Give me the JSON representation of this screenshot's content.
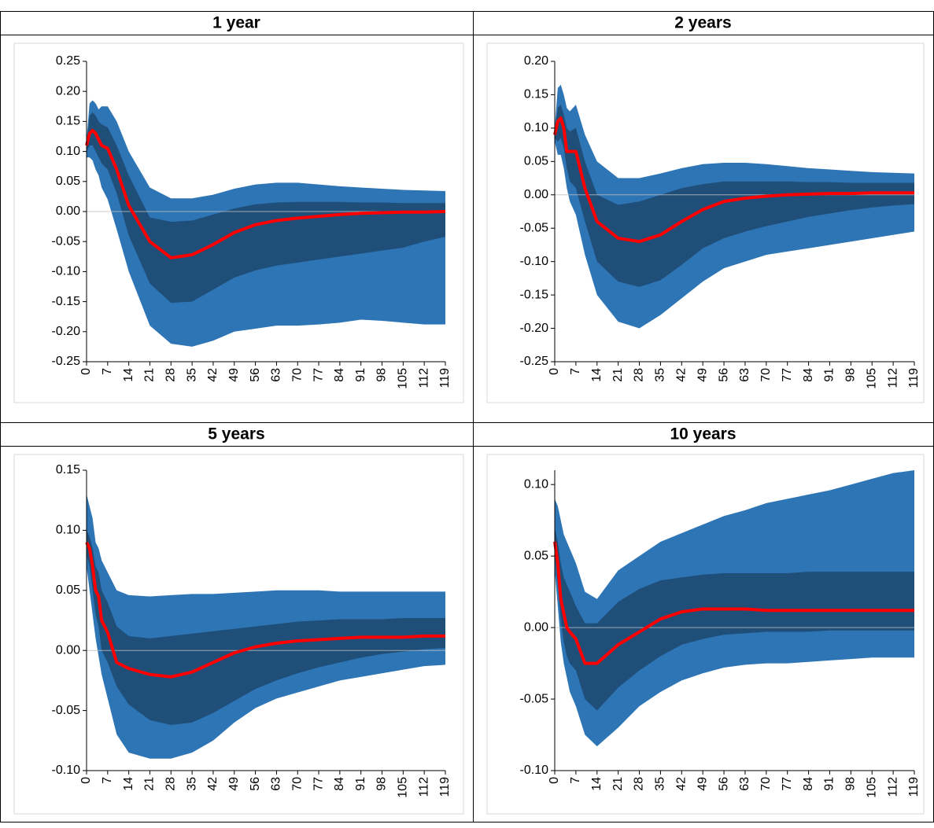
{
  "chart_data": [
    {
      "type": "fan",
      "title": "1 year",
      "x": [
        0,
        1,
        2,
        3,
        4,
        5,
        7,
        10,
        14,
        21,
        28,
        35,
        42,
        49,
        56,
        63,
        70,
        77,
        84,
        91,
        98,
        105,
        112,
        119
      ],
      "xlim": [
        0,
        119
      ],
      "xticks": [
        0,
        7,
        14,
        21,
        28,
        35,
        42,
        49,
        56,
        63,
        70,
        77,
        84,
        91,
        98,
        105,
        112,
        119
      ],
      "ylim": [
        -0.25,
        0.25
      ],
      "yticks": [
        -0.25,
        -0.2,
        -0.15,
        -0.1,
        -0.05,
        0,
        0.05,
        0.1,
        0.15,
        0.2,
        0.25
      ],
      "series": [
        {
          "color": "#2e75b6",
          "high": [
            0.12,
            0.18,
            0.185,
            0.18,
            0.17,
            0.175,
            0.175,
            0.15,
            0.1,
            0.04,
            0.022,
            0.022,
            0.028,
            0.038,
            0.045,
            0.048,
            0.048,
            0.045,
            0.042,
            0.04,
            0.038,
            0.036,
            0.035,
            0.034
          ],
          "low": [
            0.09,
            0.09,
            0.085,
            0.07,
            0.06,
            0.04,
            0.02,
            -0.03,
            -0.1,
            -0.19,
            -0.22,
            -0.225,
            -0.215,
            -0.2,
            -0.195,
            -0.19,
            -0.19,
            -0.188,
            -0.185,
            -0.18,
            -0.182,
            -0.185,
            -0.188,
            -0.188
          ]
        },
        {
          "color": "#1f4e79",
          "high": [
            0.11,
            0.16,
            0.165,
            0.16,
            0.15,
            0.145,
            0.14,
            0.11,
            0.06,
            -0.01,
            -0.017,
            -0.015,
            -0.005,
            0.005,
            0.012,
            0.015,
            0.016,
            0.016,
            0.016,
            0.015,
            0.015,
            0.014,
            0.014,
            0.014
          ],
          "low": [
            0.1,
            0.11,
            0.11,
            0.1,
            0.09,
            0.08,
            0.07,
            0.03,
            -0.04,
            -0.12,
            -0.152,
            -0.15,
            -0.13,
            -0.11,
            -0.098,
            -0.09,
            -0.085,
            -0.08,
            -0.075,
            -0.07,
            -0.065,
            -0.06,
            -0.05,
            -0.042
          ]
        },
        {
          "color": "#ff0000",
          "values": [
            0.11,
            0.13,
            0.135,
            0.13,
            0.12,
            0.11,
            0.105,
            0.07,
            0.01,
            -0.05,
            -0.077,
            -0.072,
            -0.055,
            -0.035,
            -0.022,
            -0.015,
            -0.011,
            -0.008,
            -0.005,
            -0.003,
            -0.002,
            -0.001,
            -0.001,
            0
          ]
        }
      ]
    },
    {
      "type": "fan",
      "title": "2 years",
      "x": [
        0,
        1,
        2,
        3,
        4,
        5,
        7,
        10,
        14,
        21,
        28,
        35,
        42,
        49,
        56,
        63,
        70,
        77,
        84,
        91,
        98,
        105,
        112,
        119
      ],
      "xlim": [
        0,
        119
      ],
      "xticks": [
        0,
        7,
        14,
        21,
        28,
        35,
        42,
        49,
        56,
        63,
        70,
        77,
        84,
        91,
        98,
        105,
        112,
        119
      ],
      "ylim": [
        -0.25,
        0.2
      ],
      "yticks": [
        -0.25,
        -0.2,
        -0.15,
        -0.1,
        -0.05,
        0,
        0.05,
        0.1,
        0.15,
        0.2
      ],
      "series": [
        {
          "color": "#2e75b6",
          "high": [
            0.1,
            0.16,
            0.165,
            0.15,
            0.13,
            0.125,
            0.135,
            0.09,
            0.05,
            0.025,
            0.025,
            0.032,
            0.04,
            0.046,
            0.048,
            0.048,
            0.046,
            0.043,
            0.04,
            0.038,
            0.036,
            0.034,
            0.033,
            0.032
          ],
          "low": [
            0.08,
            0.06,
            0.06,
            0.04,
            0.01,
            -0.01,
            -0.03,
            -0.09,
            -0.15,
            -0.19,
            -0.2,
            -0.18,
            -0.155,
            -0.13,
            -0.11,
            -0.1,
            -0.09,
            -0.085,
            -0.08,
            -0.075,
            -0.07,
            -0.065,
            -0.06,
            -0.055
          ]
        },
        {
          "color": "#1f4e79",
          "high": [
            0.095,
            0.13,
            0.135,
            0.12,
            0.1,
            0.095,
            0.1,
            0.05,
            0,
            -0.015,
            -0.01,
            0,
            0.01,
            0.016,
            0.02,
            0.02,
            0.02,
            0.02,
            0.019,
            0.019,
            0.018,
            0.018,
            0.018,
            0.018
          ],
          "low": [
            0.085,
            0.08,
            0.085,
            0.07,
            0.04,
            0.02,
            0.01,
            -0.04,
            -0.1,
            -0.13,
            -0.138,
            -0.128,
            -0.105,
            -0.08,
            -0.065,
            -0.055,
            -0.047,
            -0.04,
            -0.033,
            -0.028,
            -0.023,
            -0.019,
            -0.016,
            -0.014
          ]
        },
        {
          "color": "#ff0000",
          "values": [
            0.09,
            0.11,
            0.115,
            0.1,
            0.065,
            0.065,
            0.065,
            0.01,
            -0.04,
            -0.065,
            -0.07,
            -0.06,
            -0.04,
            -0.022,
            -0.01,
            -0.005,
            -0.002,
            0,
            0.001,
            0.002,
            0.002,
            0.003,
            0.003,
            0.003
          ]
        }
      ]
    },
    {
      "type": "fan",
      "title": "5 years",
      "x": [
        0,
        1,
        2,
        3,
        4,
        5,
        7,
        10,
        14,
        21,
        28,
        35,
        42,
        49,
        56,
        63,
        70,
        77,
        84,
        91,
        98,
        105,
        112,
        119
      ],
      "xlim": [
        0,
        119
      ],
      "xticks": [
        0,
        7,
        14,
        21,
        28,
        35,
        42,
        49,
        56,
        63,
        70,
        77,
        84,
        91,
        98,
        105,
        112,
        119
      ],
      "ylim": [
        -0.1,
        0.15
      ],
      "yticks": [
        -0.1,
        -0.05,
        0,
        0.05,
        0.1,
        0.15
      ],
      "series": [
        {
          "color": "#2e75b6",
          "high": [
            0.13,
            0.12,
            0.11,
            0.09,
            0.085,
            0.075,
            0.065,
            0.05,
            0.046,
            0.045,
            0.046,
            0.047,
            0.047,
            0.048,
            0.049,
            0.05,
            0.05,
            0.05,
            0.049,
            0.049,
            0.049,
            0.049,
            0.049,
            0.049
          ],
          "low": [
            0.07,
            0.05,
            0.03,
            0.01,
            -0.005,
            -0.02,
            -0.04,
            -0.07,
            -0.085,
            -0.09,
            -0.09,
            -0.085,
            -0.075,
            -0.06,
            -0.048,
            -0.04,
            -0.035,
            -0.03,
            -0.025,
            -0.022,
            -0.019,
            -0.016,
            -0.013,
            -0.012
          ]
        },
        {
          "color": "#1f4e79",
          "high": [
            0.1,
            0.095,
            0.085,
            0.07,
            0.065,
            0.05,
            0.04,
            0.02,
            0.012,
            0.01,
            0.012,
            0.014,
            0.016,
            0.018,
            0.02,
            0.022,
            0.024,
            0.025,
            0.026,
            0.026,
            0.026,
            0.027,
            0.027,
            0.027
          ],
          "low": [
            0.08,
            0.07,
            0.05,
            0.03,
            0.02,
            0,
            -0.01,
            -0.03,
            -0.045,
            -0.058,
            -0.062,
            -0.06,
            -0.052,
            -0.042,
            -0.032,
            -0.025,
            -0.019,
            -0.014,
            -0.01,
            -0.006,
            -0.003,
            -0.001,
            0.001,
            0.002
          ]
        },
        {
          "color": "#ff0000",
          "values": [
            0.09,
            0.085,
            0.07,
            0.05,
            0.045,
            0.025,
            0.015,
            -0.01,
            -0.015,
            -0.02,
            -0.022,
            -0.018,
            -0.01,
            -0.002,
            0.003,
            0.006,
            0.008,
            0.009,
            0.01,
            0.011,
            0.011,
            0.011,
            0.012,
            0.012
          ]
        }
      ]
    },
    {
      "type": "fan",
      "title": "10 years",
      "x": [
        0,
        1,
        2,
        3,
        4,
        5,
        7,
        10,
        14,
        21,
        28,
        35,
        42,
        49,
        56,
        63,
        70,
        77,
        84,
        91,
        98,
        105,
        112,
        119
      ],
      "xlim": [
        0,
        119
      ],
      "xticks": [
        0,
        7,
        14,
        21,
        28,
        35,
        42,
        49,
        56,
        63,
        70,
        77,
        84,
        91,
        98,
        105,
        112,
        119
      ],
      "ylim": [
        -0.1,
        0.11
      ],
      "yticks": [
        -0.1,
        -0.05,
        0,
        0.05,
        0.1
      ],
      "series": [
        {
          "color": "#2e75b6",
          "high": [
            0.09,
            0.085,
            0.075,
            0.065,
            0.06,
            0.055,
            0.045,
            0.025,
            0.02,
            0.04,
            0.05,
            0.06,
            0.066,
            0.072,
            0.078,
            0.082,
            0.087,
            0.09,
            0.093,
            0.096,
            0.1,
            0.104,
            0.108,
            0.11
          ],
          "low": [
            0.04,
            0.015,
            -0.01,
            -0.025,
            -0.035,
            -0.045,
            -0.055,
            -0.075,
            -0.083,
            -0.07,
            -0.055,
            -0.045,
            -0.037,
            -0.032,
            -0.028,
            -0.026,
            -0.025,
            -0.025,
            -0.024,
            -0.023,
            -0.022,
            -0.021,
            -0.021,
            -0.021
          ]
        },
        {
          "color": "#1f4e79",
          "high": [
            0.07,
            0.06,
            0.045,
            0.035,
            0.03,
            0.025,
            0.015,
            0.003,
            0.003,
            0.018,
            0.027,
            0.033,
            0.035,
            0.037,
            0.038,
            0.038,
            0.038,
            0.038,
            0.039,
            0.039,
            0.039,
            0.039,
            0.039,
            0.039
          ],
          "low": [
            0.05,
            0.03,
            0.005,
            -0.01,
            -0.02,
            -0.025,
            -0.03,
            -0.05,
            -0.058,
            -0.042,
            -0.03,
            -0.02,
            -0.012,
            -0.008,
            -0.005,
            -0.004,
            -0.003,
            -0.003,
            -0.003,
            -0.002,
            -0.002,
            -0.002,
            -0.002,
            -0.002
          ]
        },
        {
          "color": "#ff0000",
          "values": [
            0.06,
            0.045,
            0.02,
            0.01,
            0,
            -0.003,
            -0.008,
            -0.025,
            -0.025,
            -0.012,
            -0.003,
            0.006,
            0.011,
            0.013,
            0.013,
            0.013,
            0.012,
            0.012,
            0.012,
            0.012,
            0.012,
            0.012,
            0.012,
            0.012
          ]
        }
      ]
    }
  ]
}
